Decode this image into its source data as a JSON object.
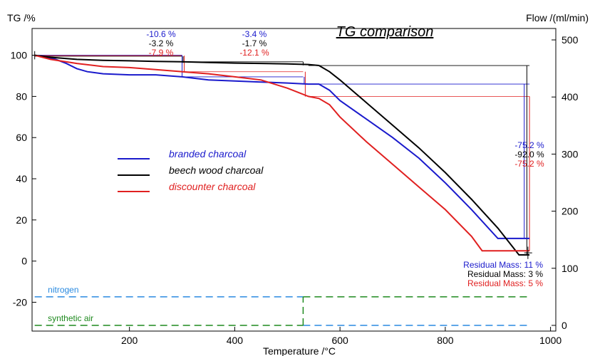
{
  "chart_data": {
    "type": "line",
    "title": "TG comparison",
    "xlabel": "Temperature /°C",
    "ylabel_left": "TG /%",
    "ylabel_right": "Flow /(ml/min)",
    "xlim": [
      15,
      1010
    ],
    "ylim": [
      -34,
      113
    ],
    "y2lim": [
      -10,
      520
    ],
    "x_ticks": [
      200,
      400,
      600,
      800,
      1000
    ],
    "y_ticks": [
      -20,
      0,
      20,
      40,
      60,
      80,
      100
    ],
    "y2_ticks": [
      0,
      100,
      200,
      300,
      400,
      500
    ],
    "grid": false,
    "legend_position": "center-left",
    "series": [
      {
        "name": "branded charcoal",
        "color": "#1a1acc",
        "x": [
          20,
          40,
          60,
          80,
          100,
          120,
          150,
          200,
          250,
          300,
          350,
          400,
          450,
          500,
          540,
          560,
          580,
          600,
          650,
          700,
          750,
          800,
          850,
          900,
          950,
          960
        ],
        "y": [
          100,
          99,
          98,
          96,
          93.5,
          92,
          91,
          90.5,
          90.5,
          89.5,
          88,
          87.5,
          87,
          86.5,
          86,
          86,
          83,
          78,
          69,
          60,
          50,
          38,
          25,
          11,
          11,
          11
        ]
      },
      {
        "name": "beech wood charcoal",
        "color": "#000000",
        "x": [
          20,
          50,
          100,
          150,
          200,
          250,
          300,
          350,
          400,
          450,
          500,
          540,
          560,
          580,
          600,
          650,
          700,
          750,
          800,
          850,
          900,
          940,
          955,
          960
        ],
        "y": [
          100,
          99,
          98,
          97.5,
          97.3,
          97,
          96.8,
          96.5,
          96.2,
          96,
          95.8,
          95.5,
          95,
          92,
          88,
          77,
          66,
          55,
          43,
          30,
          16,
          3,
          3,
          3
        ]
      },
      {
        "name": "discounter charcoal",
        "color": "#e02020",
        "x": [
          20,
          50,
          100,
          150,
          200,
          250,
          300,
          350,
          400,
          450,
          500,
          540,
          560,
          580,
          600,
          650,
          700,
          750,
          800,
          850,
          870,
          900,
          950,
          960
        ],
        "y": [
          100,
          98,
          96,
          94.5,
          94,
          93,
          92,
          91,
          89.5,
          88,
          84,
          80,
          79,
          76,
          70,
          58,
          47,
          36,
          25,
          12,
          5,
          5,
          5,
          5
        ]
      }
    ],
    "flow_series": [
      {
        "name": "nitrogen",
        "color": "#2a8ae0",
        "segments": [
          {
            "x": [
              20,
              530
            ],
            "flow": [
              50,
              50
            ]
          },
          {
            "x": [
              530,
              960
            ],
            "flow": [
              0,
              0
            ]
          }
        ]
      },
      {
        "name": "synthetic air",
        "color": "#1f8a1f",
        "segments": [
          {
            "x": [
              20,
              530
            ],
            "flow": [
              0,
              0
            ]
          },
          {
            "x": [
              530,
              530
            ],
            "flow": [
              0,
              50
            ]
          },
          {
            "x": [
              530,
              960
            ],
            "flow": [
              50,
              50
            ]
          }
        ]
      }
    ],
    "annotations": {
      "step1": [
        {
          "text": "-10.6 %",
          "color": "#1a1acc"
        },
        {
          "text": "-3.2 %",
          "color": "#000000"
        },
        {
          "text": "-7.9 %",
          "color": "#e02020"
        }
      ],
      "step2": [
        {
          "text": "-3.4 %",
          "color": "#1a1acc"
        },
        {
          "text": "-1.7 %",
          "color": "#000000"
        },
        {
          "text": "-12.1 %",
          "color": "#e02020"
        }
      ],
      "step3": [
        {
          "text": "-75.2 %",
          "color": "#1a1acc"
        },
        {
          "text": "-92.0 %",
          "color": "#000000"
        },
        {
          "text": "-75.2 %",
          "color": "#e02020"
        }
      ],
      "residual": [
        {
          "text": "Residual Mass: 11 %",
          "color": "#1a1acc"
        },
        {
          "text": "Residual Mass: 3 %",
          "color": "#000000"
        },
        {
          "text": "Residual Mass: 5 %",
          "color": "#e02020"
        }
      ]
    }
  }
}
